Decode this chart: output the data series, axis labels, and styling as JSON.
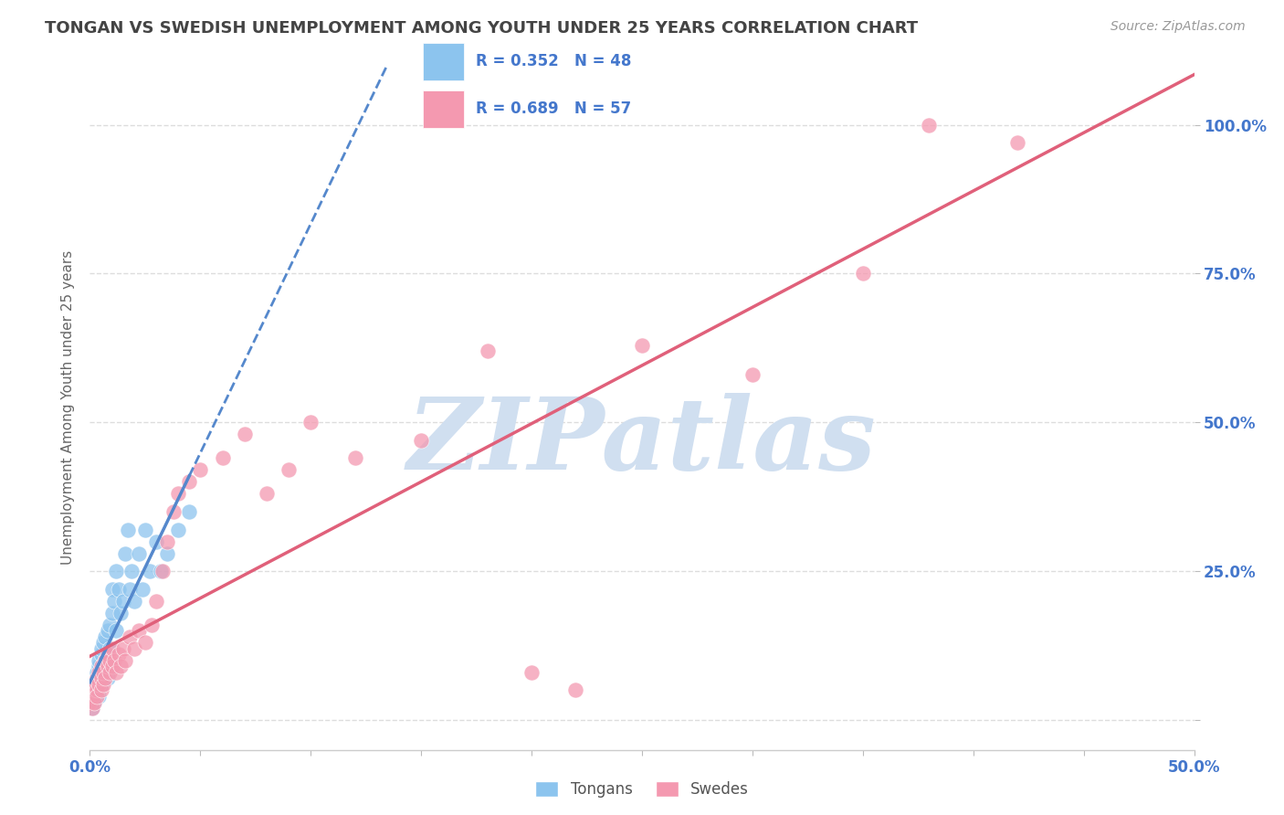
{
  "title": "TONGAN VS SWEDISH UNEMPLOYMENT AMONG YOUTH UNDER 25 YEARS CORRELATION CHART",
  "source": "Source: ZipAtlas.com",
  "ylabel": "Unemployment Among Youth under 25 years",
  "xlim": [
    0.0,
    0.5
  ],
  "ylim": [
    -0.05,
    1.1
  ],
  "xticks": [
    0.0,
    0.05,
    0.1,
    0.15,
    0.2,
    0.25,
    0.3,
    0.35,
    0.4,
    0.45,
    0.5
  ],
  "xtick_labels": [
    "0.0%",
    "",
    "",
    "",
    "",
    "",
    "",
    "",
    "",
    "",
    "50.0%"
  ],
  "yticks": [
    0.0,
    0.25,
    0.5,
    0.75,
    1.0
  ],
  "ytick_labels": [
    "",
    "25.0%",
    "50.0%",
    "75.0%",
    "100.0%"
  ],
  "color_tongans": "#8CC4EE",
  "color_swedes": "#F499B0",
  "color_trendline_tongans": "#5588CC",
  "color_trendline_swedes": "#E0607A",
  "watermark": "ZIPatlas",
  "watermark_color": "#D0DFF0",
  "grid_color": "#DDDDDD",
  "title_color": "#444444",
  "axis_label_color": "#4477CC",
  "tick_color": "#4477CC",
  "background_color": "#FFFFFF",
  "tongans_R": 0.352,
  "tongans_N": 48,
  "swedes_R": 0.689,
  "swedes_N": 57,
  "tongans_x": [
    0.0,
    0.001,
    0.001,
    0.002,
    0.002,
    0.002,
    0.003,
    0.003,
    0.003,
    0.004,
    0.004,
    0.004,
    0.004,
    0.005,
    0.005,
    0.005,
    0.005,
    0.006,
    0.006,
    0.007,
    0.007,
    0.007,
    0.008,
    0.008,
    0.009,
    0.009,
    0.01,
    0.01,
    0.011,
    0.012,
    0.012,
    0.013,
    0.014,
    0.015,
    0.016,
    0.017,
    0.018,
    0.019,
    0.02,
    0.022,
    0.024,
    0.025,
    0.027,
    0.03,
    0.032,
    0.035,
    0.04,
    0.045
  ],
  "tongans_y": [
    0.03,
    0.05,
    0.02,
    0.04,
    0.06,
    0.03,
    0.07,
    0.05,
    0.08,
    0.06,
    0.09,
    0.04,
    0.1,
    0.08,
    0.11,
    0.06,
    0.12,
    0.09,
    0.13,
    0.1,
    0.14,
    0.08,
    0.15,
    0.07,
    0.16,
    0.12,
    0.18,
    0.22,
    0.2,
    0.25,
    0.15,
    0.22,
    0.18,
    0.2,
    0.28,
    0.32,
    0.22,
    0.25,
    0.2,
    0.28,
    0.22,
    0.32,
    0.25,
    0.3,
    0.25,
    0.28,
    0.32,
    0.35
  ],
  "swedes_x": [
    0.0,
    0.001,
    0.001,
    0.002,
    0.002,
    0.002,
    0.003,
    0.003,
    0.003,
    0.004,
    0.004,
    0.005,
    0.005,
    0.005,
    0.006,
    0.006,
    0.007,
    0.007,
    0.008,
    0.008,
    0.009,
    0.009,
    0.01,
    0.01,
    0.011,
    0.012,
    0.013,
    0.014,
    0.015,
    0.016,
    0.018,
    0.02,
    0.022,
    0.025,
    0.028,
    0.03,
    0.033,
    0.035,
    0.038,
    0.04,
    0.045,
    0.05,
    0.06,
    0.07,
    0.08,
    0.09,
    0.1,
    0.12,
    0.15,
    0.18,
    0.2,
    0.22,
    0.25,
    0.3,
    0.35,
    0.38,
    0.42
  ],
  "swedes_y": [
    0.03,
    0.04,
    0.02,
    0.05,
    0.03,
    0.06,
    0.05,
    0.07,
    0.04,
    0.06,
    0.08,
    0.05,
    0.07,
    0.09,
    0.06,
    0.08,
    0.1,
    0.07,
    0.09,
    0.11,
    0.08,
    0.1,
    0.09,
    0.12,
    0.1,
    0.08,
    0.11,
    0.09,
    0.12,
    0.1,
    0.14,
    0.12,
    0.15,
    0.13,
    0.16,
    0.2,
    0.25,
    0.3,
    0.35,
    0.38,
    0.4,
    0.42,
    0.44,
    0.48,
    0.38,
    0.42,
    0.5,
    0.44,
    0.47,
    0.62,
    0.08,
    0.05,
    0.63,
    0.58,
    0.75,
    1.0,
    0.97
  ]
}
